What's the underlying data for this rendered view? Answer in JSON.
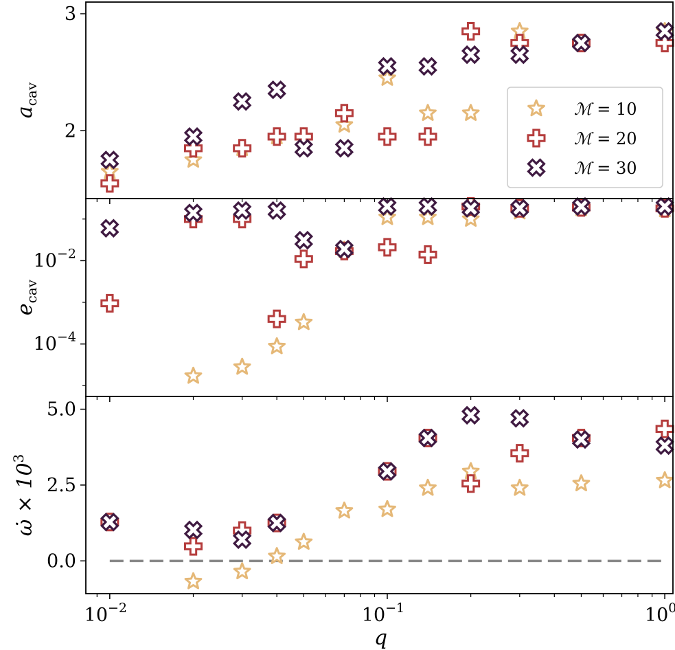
{
  "chart_data": {
    "type": "scatter",
    "x_axis": {
      "label": "q",
      "scale": "log",
      "range": [
        0.0082,
        1.07
      ],
      "ticks": [
        {
          "value": 0.01,
          "base": "10",
          "exp": "−2"
        },
        {
          "value": 0.1,
          "base": "10",
          "exp": "−1"
        },
        {
          "value": 1,
          "base": "10",
          "exp": "0"
        }
      ]
    },
    "legend": {
      "placement": "right of top panel",
      "entries": [
        {
          "series": "M10",
          "prefix": "ℳ",
          "text": " = 10"
        },
        {
          "series": "M20",
          "prefix": "ℳ",
          "text": " = 20"
        },
        {
          "series": "M30",
          "prefix": "ℳ",
          "text": " = 30"
        }
      ]
    },
    "series_style": [
      {
        "key": "M10",
        "marker": "star",
        "color": "#e5b877"
      },
      {
        "key": "M20",
        "marker": "plus",
        "color": "#b53d3d"
      },
      {
        "key": "M30",
        "marker": "x",
        "color": "#3f1a41"
      }
    ],
    "panels": [
      {
        "id": "acav",
        "ylabel_base": "a",
        "ylabel_sub": "cav",
        "yscale": "linear",
        "ylim": [
          1.42,
          3.1
        ],
        "yticks": [
          {
            "value": 2,
            "label": "2"
          },
          {
            "value": 3,
            "label": "3"
          }
        ],
        "show_legend": true,
        "series": {
          "M10": [
            [
              0.01,
              1.65
            ],
            [
              0.02,
              1.75
            ],
            [
              0.03,
              1.85
            ],
            [
              0.04,
              1.95
            ],
            [
              0.05,
              1.95
            ],
            [
              0.07,
              2.05
            ],
            [
              0.1,
              2.45
            ],
            [
              0.14,
              2.15
            ],
            [
              0.2,
              2.15
            ],
            [
              0.3,
              2.85
            ],
            [
              0.5,
              2.75
            ],
            [
              1,
              2.85
            ]
          ],
          "M20": [
            [
              0.01,
              1.55
            ],
            [
              0.02,
              1.85
            ],
            [
              0.03,
              1.85
            ],
            [
              0.04,
              1.95
            ],
            [
              0.05,
              1.95
            ],
            [
              0.07,
              2.15
            ],
            [
              0.1,
              1.95
            ],
            [
              0.14,
              1.95
            ],
            [
              0.2,
              2.85
            ],
            [
              0.3,
              2.75
            ],
            [
              0.5,
              2.75
            ],
            [
              1,
              2.75
            ]
          ],
          "M30": [
            [
              0.01,
              1.75
            ],
            [
              0.02,
              1.95
            ],
            [
              0.03,
              2.25
            ],
            [
              0.04,
              2.35
            ],
            [
              0.05,
              1.85
            ],
            [
              0.07,
              1.85
            ],
            [
              0.1,
              2.55
            ],
            [
              0.14,
              2.55
            ],
            [
              0.2,
              2.65
            ],
            [
              0.3,
              2.65
            ],
            [
              0.5,
              2.75
            ],
            [
              1,
              2.85
            ]
          ]
        }
      },
      {
        "id": "ecav",
        "ylabel_base": "e",
        "ylabel_sub": "cav",
        "yscale": "log",
        "ylim": [
          5.5e-06,
          0.31
        ],
        "yticks": [
          {
            "value": 0.01,
            "base": "10",
            "exp": "−2"
          },
          {
            "value": 0.0001,
            "base": "10",
            "exp": "−4"
          }
        ],
        "show_legend": false,
        "series": {
          "M10": [
            [
              0.02,
              1.7e-05
            ],
            [
              0.03,
              2.8e-05
            ],
            [
              0.04,
              8.7e-05
            ],
            [
              0.05,
              0.00033
            ],
            [
              0.07,
              0.018
            ],
            [
              0.1,
              0.11
            ],
            [
              0.14,
              0.11
            ],
            [
              0.2,
              0.1
            ],
            [
              0.3,
              0.15
            ],
            [
              0.5,
              0.18
            ],
            [
              1,
              0.17
            ]
          ],
          "M20": [
            [
              0.01,
              0.00095
            ],
            [
              0.02,
              0.1
            ],
            [
              0.03,
              0.1
            ],
            [
              0.04,
              0.0004
            ],
            [
              0.05,
              0.011
            ],
            [
              0.07,
              0.017
            ],
            [
              0.1,
              0.021
            ],
            [
              0.14,
              0.014
            ],
            [
              0.2,
              0.2
            ],
            [
              0.3,
              0.18
            ],
            [
              0.5,
              0.19
            ],
            [
              1,
              0.18
            ]
          ],
          "M30": [
            [
              0.01,
              0.06
            ],
            [
              0.02,
              0.14
            ],
            [
              0.03,
              0.16
            ],
            [
              0.04,
              0.16
            ],
            [
              0.05,
              0.031
            ],
            [
              0.07,
              0.019
            ],
            [
              0.1,
              0.2
            ],
            [
              0.14,
              0.2
            ],
            [
              0.2,
              0.18
            ],
            [
              0.3,
              0.18
            ],
            [
              0.5,
              0.2
            ],
            [
              1,
              0.2
            ]
          ]
        }
      },
      {
        "id": "omegadot",
        "ylabel_text": "ω̇ × 10",
        "ylabel_sup": "3",
        "yscale": "linear",
        "ylim": [
          -1.08,
          5.42
        ],
        "yticks": [
          {
            "value": 0,
            "label": "0.0"
          },
          {
            "value": 2.5,
            "label": "2.5"
          },
          {
            "value": 5,
            "label": "5.0"
          }
        ],
        "show_legend": false,
        "reference_line": {
          "y": 0,
          "x_from": 0.01,
          "x_to": 1,
          "color": "#888888",
          "style": "dashed"
        },
        "series": {
          "M10": [
            [
              0.02,
              -0.68
            ],
            [
              0.03,
              -0.35
            ],
            [
              0.04,
              0.15
            ],
            [
              0.05,
              0.62
            ],
            [
              0.07,
              1.65
            ],
            [
              0.1,
              1.7
            ],
            [
              0.14,
              2.4
            ],
            [
              0.2,
              2.95
            ],
            [
              0.3,
              2.4
            ],
            [
              0.5,
              2.55
            ],
            [
              1,
              2.65
            ]
          ],
          "M20": [
            [
              0.01,
              1.28
            ],
            [
              0.02,
              0.48
            ],
            [
              0.03,
              1.0
            ],
            [
              0.04,
              1.25
            ],
            [
              0.1,
              2.95
            ],
            [
              0.14,
              4.05
            ],
            [
              0.2,
              2.55
            ],
            [
              0.3,
              3.55
            ],
            [
              0.5,
              4.05
            ],
            [
              1,
              4.35
            ]
          ],
          "M30": [
            [
              0.01,
              1.28
            ],
            [
              0.02,
              1.02
            ],
            [
              0.03,
              0.7
            ],
            [
              0.04,
              1.25
            ],
            [
              0.1,
              2.95
            ],
            [
              0.14,
              4.05
            ],
            [
              0.2,
              4.8
            ],
            [
              0.3,
              4.7
            ],
            [
              0.5,
              4.0
            ],
            [
              1,
              3.8
            ]
          ]
        }
      }
    ]
  }
}
